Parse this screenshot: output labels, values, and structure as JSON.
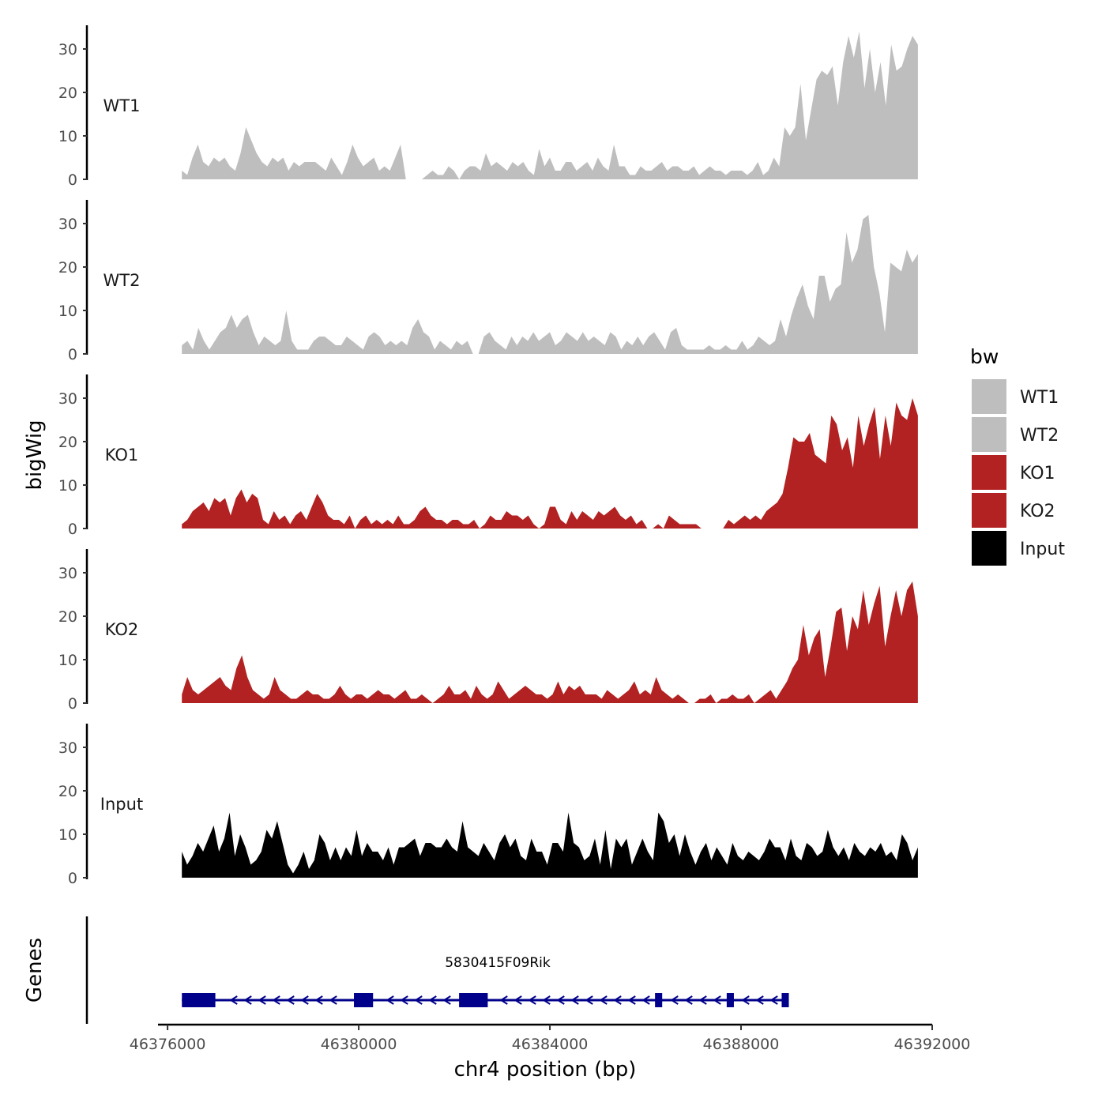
{
  "chart_data": {
    "type": "area",
    "title": "",
    "xlabel": "chr4 position (bp)",
    "ylabel": "bigWig",
    "genes_label": "Genes",
    "xlim": [
      46375800,
      46392000
    ],
    "data_range": [
      46376300,
      46391700
    ],
    "ylim": [
      0,
      35
    ],
    "yticks": [
      0,
      10,
      20,
      30
    ],
    "xticks": [
      46376000,
      46380000,
      46384000,
      46388000,
      46392000
    ],
    "xtick_labels": [
      "46376000",
      "46380000",
      "46384000",
      "46388000",
      "46392000"
    ],
    "legend": {
      "title": "bw",
      "position": "right",
      "entries": [
        {
          "label": "WT1",
          "color": "#BEBEBE"
        },
        {
          "label": "WT2",
          "color": "#BEBEBE"
        },
        {
          "label": "KO1",
          "color": "#B22222"
        },
        {
          "label": "KO2",
          "color": "#B22222"
        },
        {
          "label": "Input",
          "color": "#000000"
        }
      ]
    },
    "series": [
      {
        "name": "WT1",
        "color": "#BEBEBE",
        "values": [
          2,
          1,
          5,
          8,
          4,
          3,
          5,
          4,
          5,
          3,
          2,
          6,
          12,
          9,
          6,
          4,
          3,
          5,
          4,
          5,
          2,
          4,
          3,
          4,
          4,
          4,
          3,
          2,
          5,
          3,
          1,
          4,
          8,
          5,
          3,
          4,
          5,
          2,
          3,
          2,
          5,
          8,
          0,
          0,
          0,
          0,
          1,
          2,
          1,
          1,
          3,
          2,
          0,
          2,
          3,
          3,
          2,
          6,
          3,
          4,
          3,
          2,
          4,
          3,
          4,
          2,
          1,
          7,
          3,
          5,
          2,
          2,
          4,
          4,
          2,
          3,
          4,
          2,
          5,
          3,
          2,
          8,
          3,
          3,
          1,
          1,
          3,
          2,
          2,
          3,
          4,
          2,
          3,
          3,
          2,
          2,
          3,
          1,
          2,
          3,
          2,
          2,
          1,
          2,
          2,
          2,
          1,
          2,
          4,
          1,
          2,
          5,
          3,
          12,
          10,
          12,
          22,
          9,
          16,
          23,
          25,
          24,
          26,
          17,
          27,
          33,
          28,
          34,
          21,
          30,
          20,
          27,
          17,
          31,
          25,
          26,
          30,
          33,
          31
        ]
      },
      {
        "name": "WT2",
        "color": "#BEBEBE",
        "values": [
          2,
          3,
          1,
          6,
          3,
          1,
          3,
          5,
          6,
          9,
          6,
          8,
          9,
          5,
          2,
          4,
          3,
          2,
          3,
          10,
          3,
          1,
          1,
          1,
          3,
          4,
          4,
          3,
          2,
          2,
          4,
          3,
          2,
          1,
          4,
          5,
          4,
          2,
          3,
          2,
          3,
          2,
          6,
          8,
          5,
          4,
          1,
          3,
          2,
          1,
          3,
          2,
          3,
          0,
          0,
          4,
          5,
          3,
          2,
          1,
          4,
          2,
          4,
          3,
          5,
          3,
          4,
          5,
          2,
          3,
          5,
          4,
          3,
          5,
          3,
          4,
          3,
          2,
          5,
          4,
          1,
          3,
          2,
          4,
          2,
          4,
          5,
          3,
          1,
          5,
          6,
          2,
          1,
          1,
          1,
          1,
          2,
          1,
          1,
          2,
          1,
          1,
          3,
          1,
          2,
          4,
          3,
          2,
          3,
          8,
          4,
          9,
          13,
          16,
          11,
          8,
          18,
          18,
          12,
          15,
          16,
          28,
          21,
          24,
          31,
          32,
          20,
          14,
          5,
          21,
          20,
          19,
          24,
          21,
          23
        ]
      },
      {
        "name": "KO1",
        "color": "#B22222",
        "values": [
          1,
          2,
          4,
          5,
          6,
          4,
          7,
          6,
          7,
          3,
          7,
          9,
          6,
          8,
          7,
          2,
          1,
          4,
          2,
          3,
          1,
          3,
          4,
          2,
          5,
          8,
          6,
          3,
          2,
          2,
          1,
          3,
          0,
          2,
          3,
          1,
          2,
          1,
          2,
          1,
          3,
          1,
          1,
          2,
          4,
          5,
          3,
          2,
          2,
          1,
          2,
          2,
          1,
          1,
          2,
          0,
          1,
          3,
          2,
          2,
          4,
          3,
          3,
          2,
          3,
          1,
          0,
          1,
          5,
          5,
          2,
          1,
          4,
          2,
          4,
          3,
          2,
          4,
          3,
          4,
          5,
          3,
          2,
          3,
          1,
          2,
          0,
          0,
          1,
          0,
          3,
          2,
          1,
          1,
          1,
          1,
          0,
          0,
          0,
          0,
          0,
          2,
          1,
          2,
          3,
          2,
          3,
          2,
          4,
          5,
          6,
          8,
          14,
          21,
          20,
          20,
          22,
          17,
          16,
          15,
          26,
          24,
          18,
          21,
          14,
          26,
          19,
          24,
          28,
          16,
          26,
          19,
          29,
          26,
          25,
          30,
          26
        ]
      },
      {
        "name": "KO2",
        "color": "#B22222",
        "values": [
          2,
          6,
          3,
          2,
          3,
          4,
          5,
          6,
          4,
          3,
          8,
          11,
          6,
          3,
          2,
          1,
          2,
          6,
          3,
          2,
          1,
          1,
          2,
          3,
          2,
          2,
          1,
          1,
          2,
          4,
          2,
          1,
          2,
          2,
          1,
          2,
          3,
          2,
          2,
          1,
          2,
          3,
          1,
          1,
          2,
          1,
          0,
          1,
          2,
          4,
          2,
          2,
          3,
          1,
          4,
          2,
          1,
          2,
          5,
          3,
          1,
          2,
          3,
          4,
          3,
          2,
          2,
          1,
          2,
          5,
          2,
          4,
          3,
          4,
          2,
          2,
          2,
          1,
          3,
          2,
          1,
          2,
          3,
          5,
          2,
          3,
          2,
          6,
          3,
          2,
          1,
          2,
          1,
          0,
          0,
          1,
          1,
          2,
          0,
          1,
          1,
          2,
          1,
          1,
          2,
          0,
          1,
          2,
          3,
          1,
          3,
          5,
          8,
          10,
          18,
          11,
          15,
          17,
          6,
          13,
          21,
          22,
          12,
          20,
          17,
          26,
          18,
          23,
          27,
          13,
          20,
          26,
          20,
          26,
          28,
          20
        ]
      },
      {
        "name": "Input",
        "color": "#000000",
        "values": [
          6,
          3,
          5,
          8,
          6,
          9,
          12,
          6,
          9,
          15,
          5,
          10,
          7,
          3,
          4,
          6,
          11,
          9,
          13,
          8,
          3,
          1,
          3,
          6,
          2,
          4,
          10,
          8,
          4,
          7,
          4,
          7,
          5,
          11,
          5,
          8,
          6,
          6,
          4,
          7,
          3,
          7,
          7,
          8,
          9,
          5,
          8,
          8,
          7,
          7,
          9,
          7,
          6,
          13,
          7,
          6,
          5,
          8,
          6,
          4,
          8,
          10,
          7,
          9,
          5,
          4,
          9,
          6,
          6,
          3,
          8,
          8,
          6,
          15,
          8,
          7,
          4,
          5,
          9,
          3,
          11,
          2,
          9,
          7,
          9,
          3,
          6,
          9,
          6,
          4,
          15,
          13,
          8,
          10,
          5,
          10,
          6,
          3,
          6,
          8,
          4,
          7,
          5,
          3,
          8,
          5,
          4,
          6,
          5,
          4,
          6,
          9,
          7,
          7,
          4,
          9,
          5,
          4,
          8,
          7,
          5,
          6,
          11,
          7,
          5,
          7,
          4,
          8,
          6,
          5,
          7,
          6,
          8,
          5,
          6,
          4,
          10,
          8,
          4,
          7
        ]
      }
    ],
    "gene": {
      "name": "5830415F09Rik",
      "start": 46376300,
      "end": 46389000,
      "strand": "-",
      "color": "#00008B",
      "exons": [
        [
          46376300,
          46377000
        ],
        [
          46379900,
          46380300
        ],
        [
          46382100,
          46382700
        ],
        [
          46386200,
          46386350
        ],
        [
          46387700,
          46387850
        ],
        [
          46388850,
          46389000
        ]
      ]
    }
  }
}
